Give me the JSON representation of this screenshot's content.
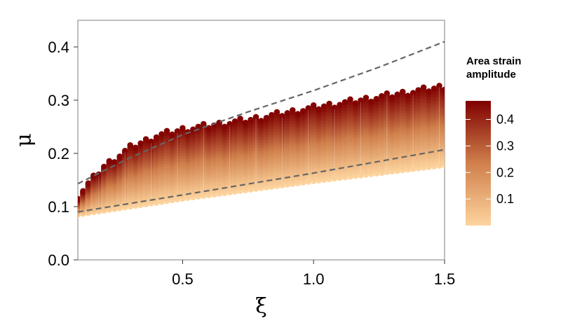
{
  "chart_data": {
    "type": "scatter",
    "title": "",
    "xlabel": "ξ",
    "ylabel": "μ",
    "xlim": [
      0.1,
      1.5
    ],
    "ylim": [
      0.0,
      0.45
    ],
    "x_ticks": [
      0.5,
      1.0,
      1.5
    ],
    "x_tick_labels": [
      "0.5",
      "1.0",
      "1.5"
    ],
    "y_ticks": [
      0.0,
      0.1,
      0.2,
      0.3,
      0.4
    ],
    "y_tick_labels": [
      "0.0",
      "0.1",
      "0.2",
      "0.3",
      "0.4"
    ],
    "grid": false,
    "scatter_band": {
      "x_start": 0.1,
      "x_end": 1.5,
      "x_step": 0.02,
      "lower_edge": [
        [
          0.1,
          0.085
        ],
        [
          0.5,
          0.115
        ],
        [
          1.0,
          0.148
        ],
        [
          1.5,
          0.178
        ]
      ],
      "upper_edge": [
        [
          0.1,
          0.12
        ],
        [
          0.2,
          0.175
        ],
        [
          0.3,
          0.21
        ],
        [
          0.4,
          0.232
        ],
        [
          0.5,
          0.244
        ],
        [
          0.75,
          0.262
        ],
        [
          1.0,
          0.285
        ],
        [
          1.25,
          0.305
        ],
        [
          1.5,
          0.325
        ]
      ],
      "color_variable": "Area strain amplitude",
      "color_range": [
        0.0,
        0.47
      ]
    },
    "reference_lines": [
      {
        "style": "dashed",
        "color": "#666666",
        "points": [
          [
            0.1,
            0.143
          ],
          [
            0.3,
            0.192
          ],
          [
            0.5,
            0.235
          ],
          [
            0.75,
            0.278
          ],
          [
            1.0,
            0.318
          ],
          [
            1.25,
            0.362
          ],
          [
            1.5,
            0.41
          ]
        ]
      },
      {
        "style": "dashed",
        "color": "#666666",
        "points": [
          [
            0.1,
            0.09
          ],
          [
            0.5,
            0.122
          ],
          [
            1.0,
            0.163
          ],
          [
            1.5,
            0.207
          ]
        ]
      }
    ],
    "legend": {
      "title_lines": [
        "Area strain",
        "amplitude"
      ],
      "position": "right",
      "ticks": [
        0.1,
        0.2,
        0.3,
        0.4
      ],
      "tick_labels": [
        "0.1",
        "0.2",
        "0.3",
        "0.4"
      ],
      "color_low": "#fdd49e",
      "color_mid": "#d0804c",
      "color_high": "#7f0000"
    }
  }
}
